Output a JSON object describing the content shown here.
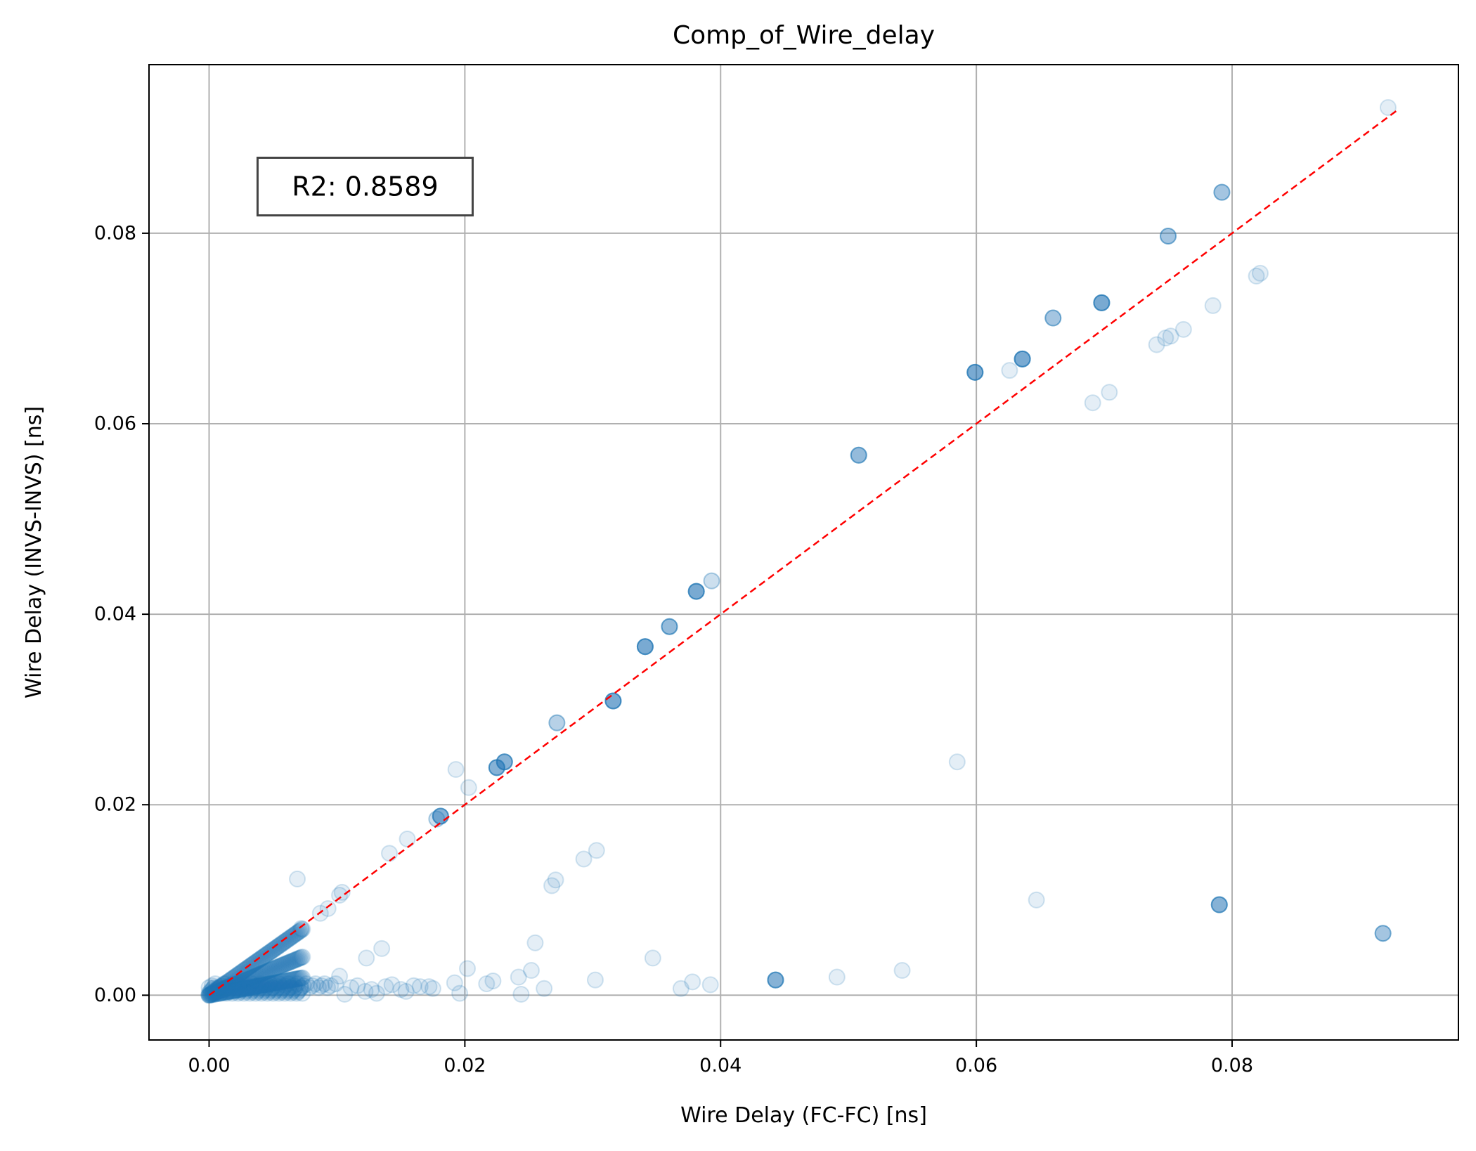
{
  "chart_data": {
    "type": "scatter",
    "title": "Comp_of_Wire_delay",
    "xlabel": "Wire Delay (FC-FC) [ns]",
    "ylabel": "Wire Delay (INVS-INVS) [ns]",
    "xlim": [
      -0.0047,
      0.0977
    ],
    "ylim": [
      -0.0047,
      0.0977
    ],
    "xticks": [
      "0.00",
      "0.02",
      "0.04",
      "0.06",
      "0.08"
    ],
    "yticks": [
      "0.00",
      "0.02",
      "0.04",
      "0.06",
      "0.08"
    ],
    "grid": true,
    "marker_color": "#1f77b4",
    "marker_alpha": 0.12,
    "reference_line": {
      "x": [
        0.0,
        0.093
      ],
      "y": [
        0.0,
        0.093
      ],
      "color": "#ff0000",
      "style": "dashed"
    },
    "annotation": {
      "text": "R2: 0.8589",
      "x": 0.0122,
      "y": 0.0849
    },
    "points": [
      [
        0.0922,
        0.0932
      ],
      [
        0.0792,
        0.0843
      ],
      [
        0.0792,
        0.0843
      ],
      [
        0.0792,
        0.0843
      ],
      [
        0.0792,
        0.0843
      ],
      [
        0.075,
        0.0797
      ],
      [
        0.075,
        0.0797
      ],
      [
        0.075,
        0.0797
      ],
      [
        0.075,
        0.0797
      ],
      [
        0.0822,
        0.0758
      ],
      [
        0.0819,
        0.0755
      ],
      [
        0.0785,
        0.0724
      ],
      [
        0.0762,
        0.0699
      ],
      [
        0.0752,
        0.0692
      ],
      [
        0.0748,
        0.069
      ],
      [
        0.0741,
        0.0683
      ],
      [
        0.0698,
        0.0727
      ],
      [
        0.0698,
        0.0727
      ],
      [
        0.0698,
        0.0727
      ],
      [
        0.0698,
        0.0727
      ],
      [
        0.0698,
        0.0727
      ],
      [
        0.0698,
        0.0727
      ],
      [
        0.0698,
        0.0727
      ],
      [
        0.066,
        0.0711
      ],
      [
        0.066,
        0.0711
      ],
      [
        0.066,
        0.0711
      ],
      [
        0.066,
        0.0711
      ],
      [
        0.0636,
        0.0668
      ],
      [
        0.0636,
        0.0668
      ],
      [
        0.0636,
        0.0668
      ],
      [
        0.0636,
        0.0668
      ],
      [
        0.0636,
        0.0668
      ],
      [
        0.0636,
        0.0668
      ],
      [
        0.0636,
        0.0668
      ],
      [
        0.0626,
        0.0656
      ],
      [
        0.0599,
        0.0654
      ],
      [
        0.0599,
        0.0654
      ],
      [
        0.0599,
        0.0654
      ],
      [
        0.0599,
        0.0654
      ],
      [
        0.0599,
        0.0654
      ],
      [
        0.0599,
        0.0654
      ],
      [
        0.0599,
        0.0654
      ],
      [
        0.0704,
        0.0633
      ],
      [
        0.0691,
        0.0622
      ],
      [
        0.0508,
        0.0567
      ],
      [
        0.0508,
        0.0567
      ],
      [
        0.0508,
        0.0567
      ],
      [
        0.0508,
        0.0567
      ],
      [
        0.0508,
        0.0567
      ],
      [
        0.0393,
        0.0435
      ],
      [
        0.0393,
        0.0435
      ],
      [
        0.0381,
        0.0424
      ],
      [
        0.0381,
        0.0424
      ],
      [
        0.0381,
        0.0424
      ],
      [
        0.0381,
        0.0424
      ],
      [
        0.0381,
        0.0424
      ],
      [
        0.0381,
        0.0424
      ],
      [
        0.0381,
        0.0424
      ],
      [
        0.036,
        0.0387
      ],
      [
        0.036,
        0.0387
      ],
      [
        0.036,
        0.0387
      ],
      [
        0.036,
        0.0387
      ],
      [
        0.036,
        0.0387
      ],
      [
        0.0341,
        0.0366
      ],
      [
        0.0341,
        0.0366
      ],
      [
        0.0341,
        0.0366
      ],
      [
        0.0341,
        0.0366
      ],
      [
        0.0341,
        0.0366
      ],
      [
        0.0341,
        0.0366
      ],
      [
        0.0341,
        0.0366
      ],
      [
        0.0316,
        0.0309
      ],
      [
        0.0316,
        0.0309
      ],
      [
        0.0316,
        0.0309
      ],
      [
        0.0316,
        0.0309
      ],
      [
        0.0316,
        0.0309
      ],
      [
        0.0316,
        0.0309
      ],
      [
        0.0316,
        0.0309
      ],
      [
        0.0272,
        0.0286
      ],
      [
        0.0272,
        0.0286
      ],
      [
        0.0272,
        0.0286
      ],
      [
        0.0231,
        0.0245
      ],
      [
        0.0231,
        0.0245
      ],
      [
        0.0231,
        0.0245
      ],
      [
        0.0231,
        0.0245
      ],
      [
        0.0231,
        0.0245
      ],
      [
        0.0231,
        0.0245
      ],
      [
        0.0225,
        0.0239
      ],
      [
        0.0225,
        0.0239
      ],
      [
        0.0225,
        0.0239
      ],
      [
        0.0225,
        0.0239
      ],
      [
        0.0225,
        0.0239
      ],
      [
        0.0225,
        0.0239
      ],
      [
        0.0193,
        0.0237
      ],
      [
        0.0203,
        0.0218
      ],
      [
        0.0181,
        0.0188
      ],
      [
        0.0181,
        0.0188
      ],
      [
        0.0181,
        0.0188
      ],
      [
        0.0181,
        0.0188
      ],
      [
        0.0181,
        0.0188
      ],
      [
        0.0181,
        0.0188
      ],
      [
        0.0178,
        0.0185
      ],
      [
        0.0178,
        0.0185
      ],
      [
        0.0155,
        0.0164
      ],
      [
        0.0141,
        0.0149
      ],
      [
        0.0104,
        0.0108
      ],
      [
        0.0102,
        0.0105
      ],
      [
        0.0093,
        0.0091
      ],
      [
        0.0087,
        0.0086
      ],
      [
        0.0072,
        0.007
      ],
      [
        0.0069,
        0.0122
      ],
      [
        0.0585,
        0.0245
      ],
      [
        0.0647,
        0.01
      ],
      [
        0.0303,
        0.0152
      ],
      [
        0.0293,
        0.0143
      ],
      [
        0.0271,
        0.0121
      ],
      [
        0.0268,
        0.0115
      ],
      [
        0.079,
        0.0095
      ],
      [
        0.079,
        0.0095
      ],
      [
        0.079,
        0.0095
      ],
      [
        0.079,
        0.0095
      ],
      [
        0.079,
        0.0095
      ],
      [
        0.079,
        0.0095
      ],
      [
        0.0918,
        0.0065
      ],
      [
        0.0918,
        0.0065
      ],
      [
        0.0918,
        0.0065
      ],
      [
        0.0918,
        0.0065
      ],
      [
        0.0255,
        0.0055
      ],
      [
        0.0135,
        0.0049
      ],
      [
        0.0347,
        0.0039
      ],
      [
        0.0123,
        0.0039
      ],
      [
        0.0443,
        0.0016
      ],
      [
        0.0443,
        0.0016
      ],
      [
        0.0443,
        0.0016
      ],
      [
        0.0443,
        0.0016
      ],
      [
        0.0443,
        0.0016
      ],
      [
        0.0443,
        0.0016
      ],
      [
        0.0542,
        0.0026
      ],
      [
        0.0491,
        0.0019
      ],
      [
        0.0302,
        0.0016
      ],
      [
        0.0202,
        0.0028
      ],
      [
        0.0252,
        0.0026
      ],
      [
        0.0242,
        0.0019
      ],
      [
        0.0192,
        0.0013
      ],
      [
        0.0217,
        0.0012
      ],
      [
        0.0222,
        0.0015
      ],
      [
        0.0378,
        0.0014
      ],
      [
        0.0392,
        0.0011
      ],
      [
        0.0369,
        0.0007
      ],
      [
        0.0262,
        0.0007
      ],
      [
        0.0244,
        0.0001
      ],
      [
        0.0196,
        0.0002
      ],
      [
        0.0172,
        0.0009
      ],
      [
        0.0175,
        0.0007
      ],
      [
        0.0165,
        0.0009
      ],
      [
        0.016,
        0.001
      ],
      [
        0.0154,
        0.0004
      ],
      [
        0.015,
        0.0006
      ],
      [
        0.0143,
        0.0011
      ],
      [
        0.0138,
        0.0009
      ],
      [
        0.0131,
        0.0002
      ],
      [
        0.0127,
        0.0006
      ],
      [
        0.0122,
        0.0004
      ],
      [
        0.0116,
        0.001
      ],
      [
        0.0111,
        0.0008
      ],
      [
        0.0106,
        0.0001
      ],
      [
        0.0102,
        0.002
      ],
      [
        0.0099,
        0.0012
      ]
    ]
  }
}
